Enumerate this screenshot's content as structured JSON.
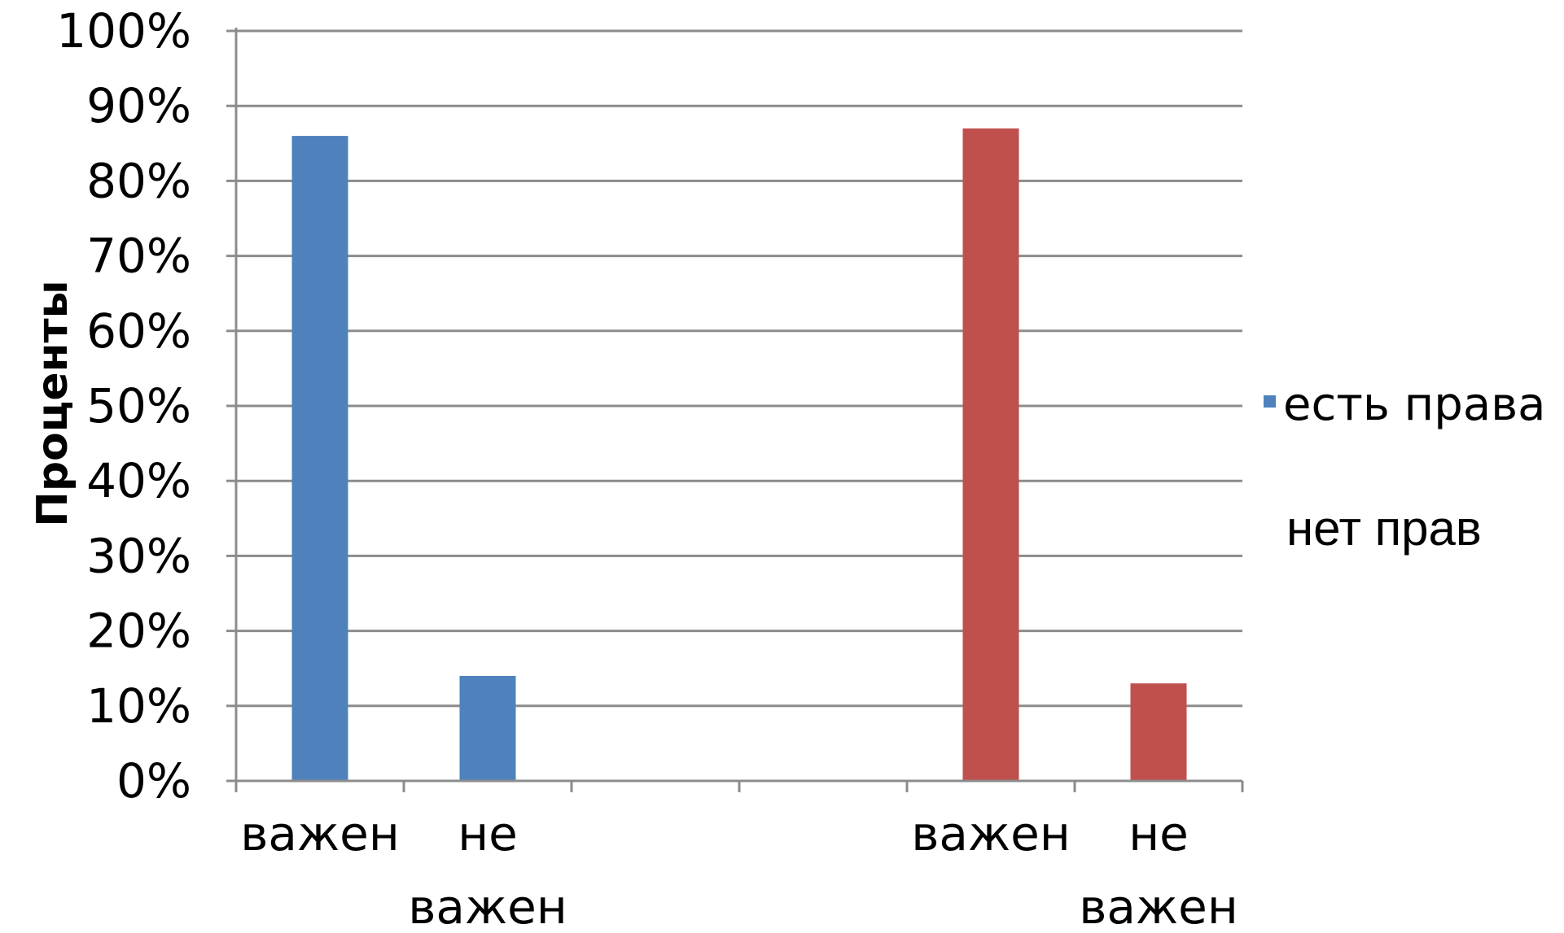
{
  "chart_data": {
    "type": "bar",
    "ylabel": "Проценты",
    "yticks": [
      "0%",
      "10%",
      "20%",
      "30%",
      "40%",
      "50%",
      "60%",
      "70%",
      "80%",
      "90%",
      "100%"
    ],
    "ylim": [
      0,
      100
    ],
    "grid": true,
    "legend_position": "right",
    "category_slots": 6,
    "series": [
      {
        "name": "есть права",
        "color": "#4F81BD",
        "points": [
          {
            "slot": 0,
            "label_lines": [
              "важен"
            ],
            "value": 86
          },
          {
            "slot": 1,
            "label_lines": [
              "не",
              "важен"
            ],
            "value": 14
          }
        ]
      },
      {
        "name": "нет прав",
        "color": "#C0504D",
        "points": [
          {
            "slot": 4,
            "label_lines": [
              "важен"
            ],
            "value": 87
          },
          {
            "slot": 5,
            "label_lines": [
              "не",
              "важен"
            ],
            "value": 13
          }
        ]
      }
    ]
  }
}
